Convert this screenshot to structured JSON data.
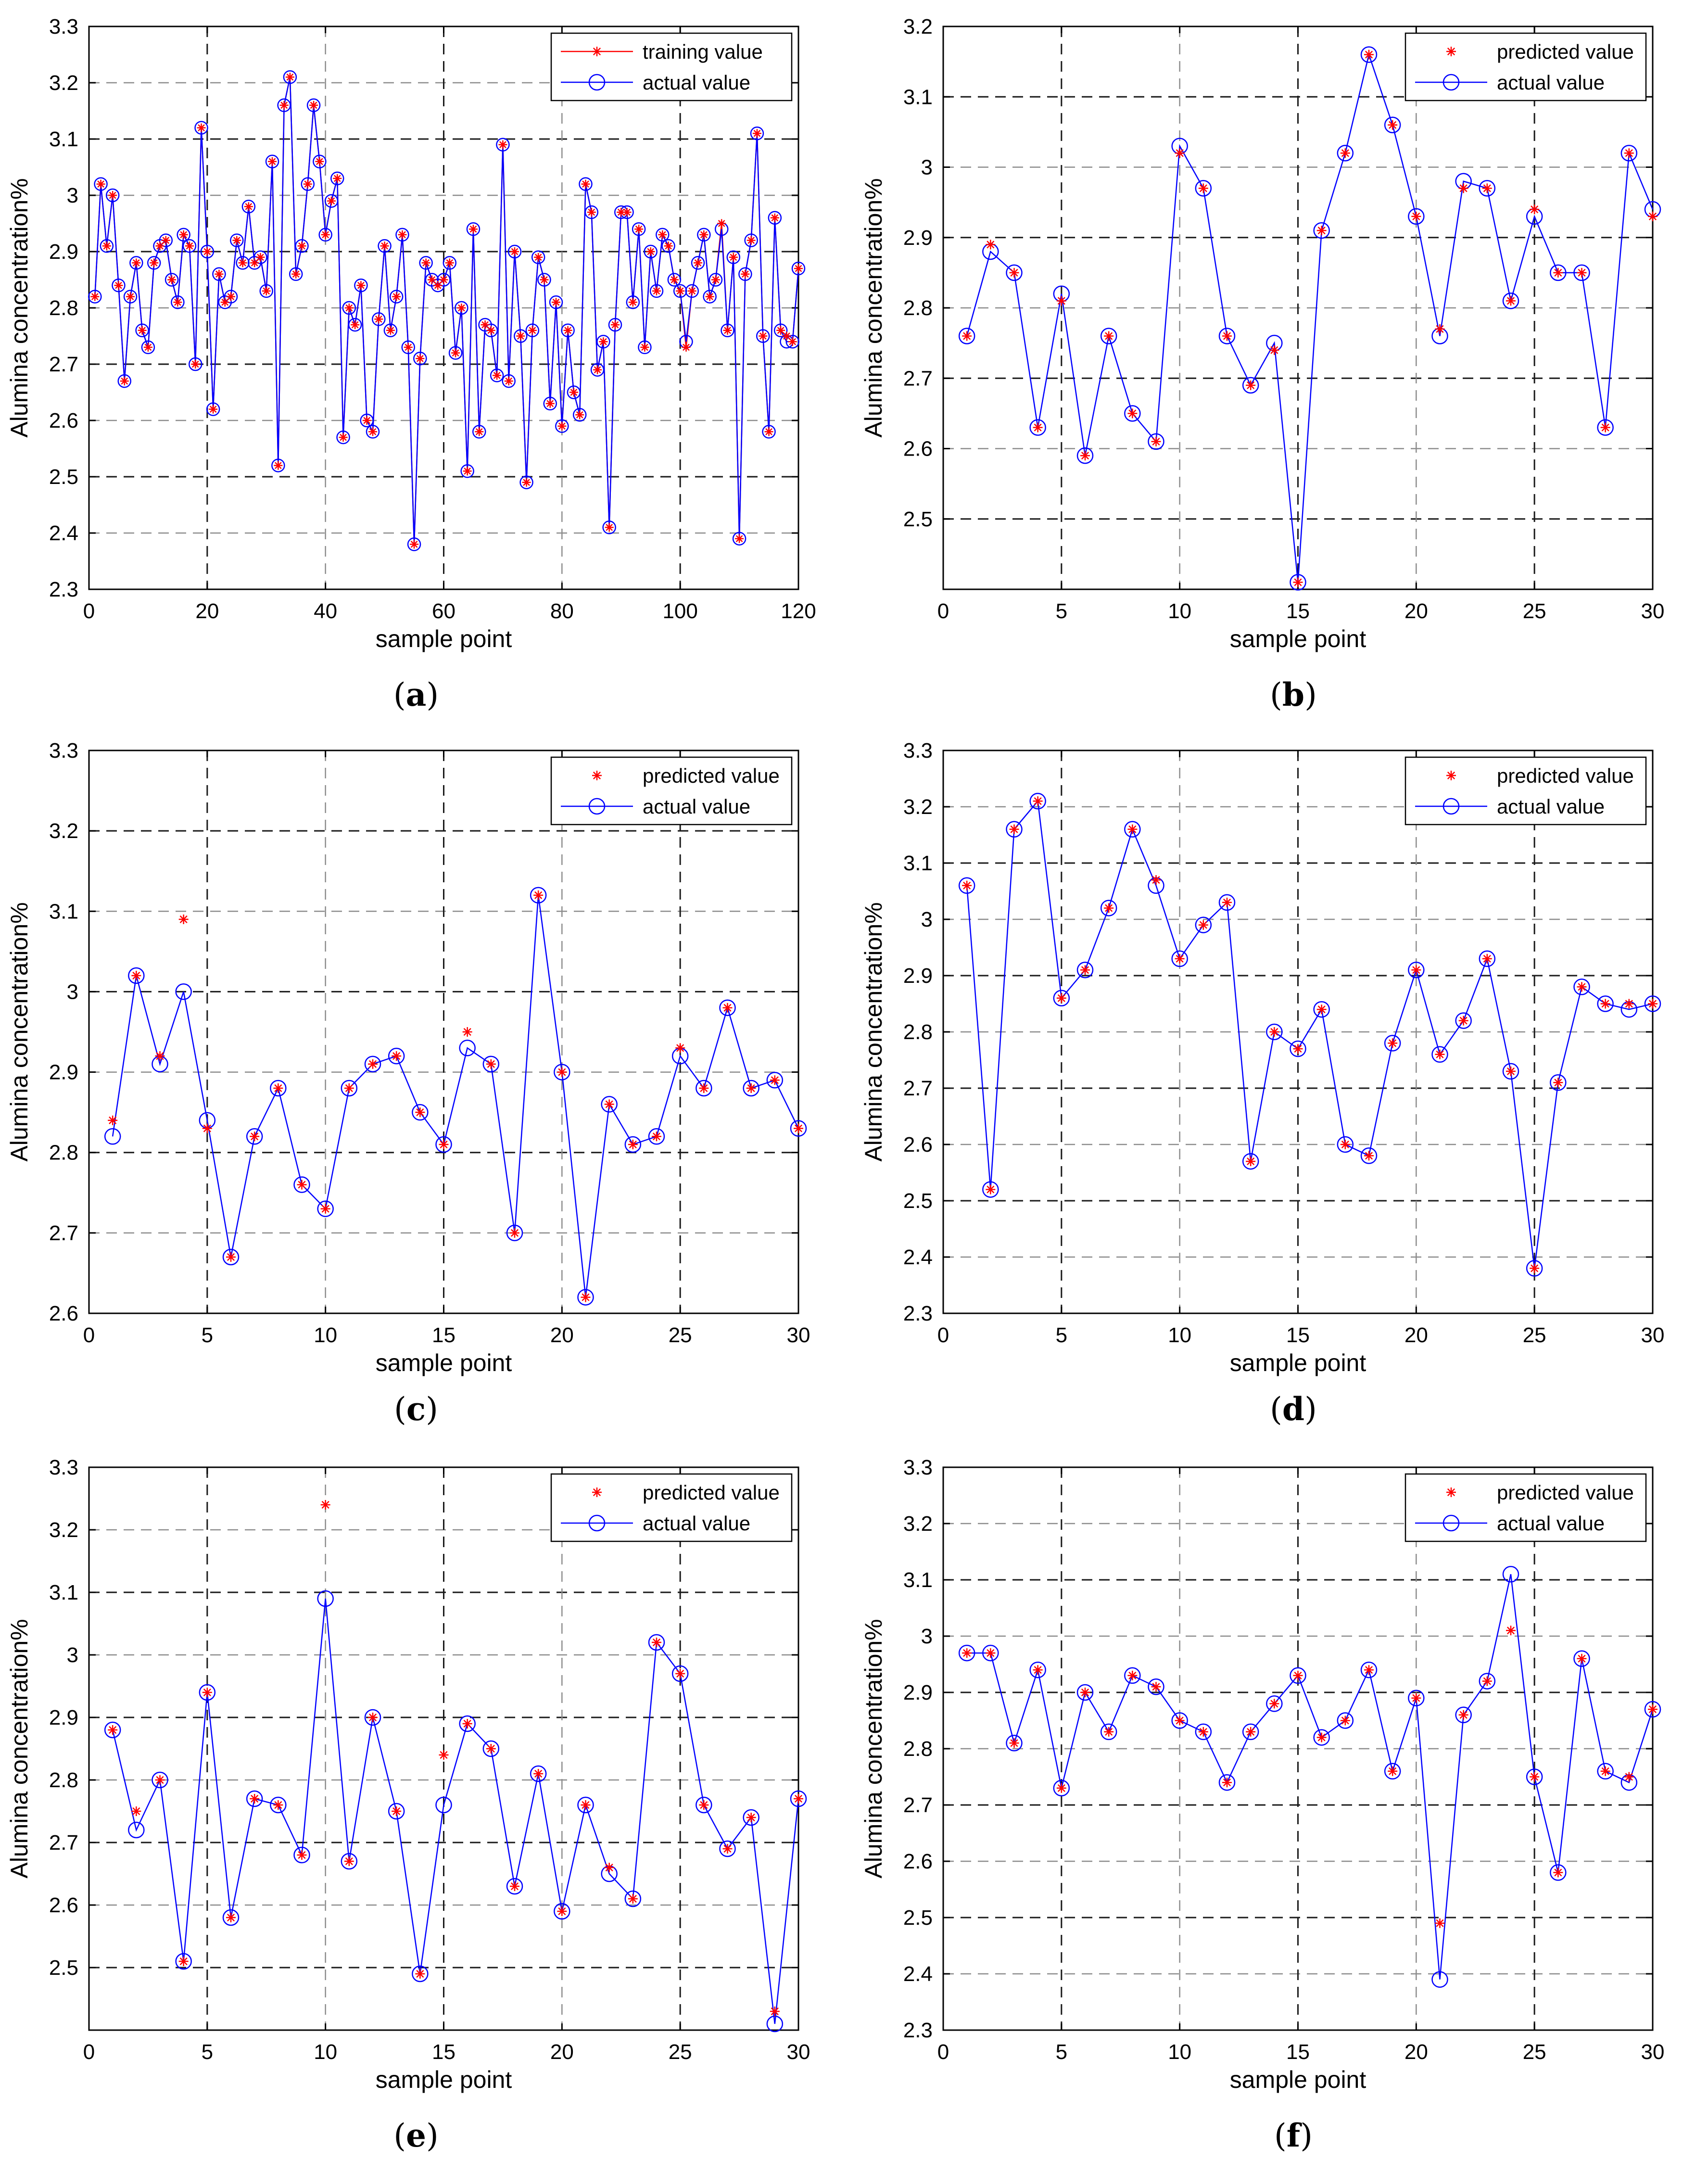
{
  "figure": {
    "xlabel": "sample point",
    "ylabel": "Alumina concentration%",
    "colors": {
      "predicted": "#ff0000",
      "actual": "#0000ff",
      "axis": "#000000",
      "grid_dark": "#1a1a1a",
      "grid_light": "#8c8c8c"
    }
  },
  "captions": [
    {
      "open": "(",
      "letter": "a",
      "close": ")"
    },
    {
      "open": "(",
      "letter": "b",
      "close": ")"
    },
    {
      "open": "(",
      "letter": "c",
      "close": ")"
    },
    {
      "open": "(",
      "letter": "d",
      "close": ")"
    },
    {
      "open": "(",
      "letter": "e",
      "close": ")"
    },
    {
      "open": "(",
      "letter": "f",
      "close": ")"
    }
  ],
  "chart_data": [
    {
      "type": "line",
      "panel": "a",
      "xlabel": "sample point",
      "ylabel": "Alumina concentration%",
      "xlim": [
        0,
        120
      ],
      "ylim": [
        2.3,
        3.3
      ],
      "xticks": [
        0,
        20,
        40,
        60,
        80,
        100,
        120
      ],
      "yticks": [
        2.3,
        2.4,
        2.5,
        2.6,
        2.7,
        2.8,
        2.9,
        3.0,
        3.1,
        3.2,
        3.3
      ],
      "ytick_labels": [
        "2.3",
        "2.4",
        "2.5",
        "2.6",
        "2.7",
        "2.8",
        "2.9",
        "3",
        "3.1",
        "3.2",
        "3.3"
      ],
      "legend_position": "top-right",
      "series": [
        {
          "name": "training value",
          "marker": "star",
          "color": "#ff0000",
          "line": true,
          "values": [
            2.82,
            3.02,
            2.91,
            3.0,
            2.84,
            2.67,
            2.82,
            2.88,
            2.76,
            2.73,
            2.88,
            2.91,
            2.92,
            2.85,
            2.81,
            2.93,
            2.91,
            2.7,
            3.12,
            2.9,
            2.62,
            2.86,
            2.81,
            2.82,
            2.92,
            2.88,
            2.98,
            2.88,
            2.89,
            2.83,
            3.06,
            2.52,
            3.16,
            3.21,
            2.86,
            2.91,
            3.02,
            3.16,
            3.06,
            2.93,
            2.99,
            3.03,
            2.57,
            2.8,
            2.77,
            2.84,
            2.6,
            2.58,
            2.78,
            2.91,
            2.76,
            2.82,
            2.93,
            2.73,
            2.38,
            2.71,
            2.88,
            2.85,
            2.84,
            2.85,
            2.88,
            2.72,
            2.8,
            2.51,
            2.94,
            2.58,
            2.77,
            2.76,
            2.68,
            3.09,
            2.67,
            2.9,
            2.75,
            2.49,
            2.76,
            2.89,
            2.85,
            2.63,
            2.81,
            2.59,
            2.76,
            2.65,
            2.61,
            3.02,
            2.97,
            2.69,
            2.74,
            2.41,
            2.77,
            2.97,
            2.97,
            2.81,
            2.94,
            2.73,
            2.9,
            2.83,
            2.93,
            2.91,
            2.85,
            2.83,
            2.73,
            2.83,
            2.88,
            2.93,
            2.82,
            2.85,
            2.95,
            2.76,
            2.89,
            2.39,
            2.86,
            2.92,
            3.11,
            2.75,
            2.58,
            2.96,
            2.76,
            2.75,
            2.74,
            2.87
          ]
        },
        {
          "name": "actual value",
          "marker": "circle",
          "color": "#0000ff",
          "line": true,
          "values": [
            2.82,
            3.02,
            2.91,
            3.0,
            2.84,
            2.67,
            2.82,
            2.88,
            2.76,
            2.73,
            2.88,
            2.91,
            2.92,
            2.85,
            2.81,
            2.93,
            2.91,
            2.7,
            3.12,
            2.9,
            2.62,
            2.86,
            2.81,
            2.82,
            2.92,
            2.88,
            2.98,
            2.88,
            2.89,
            2.83,
            3.06,
            2.52,
            3.16,
            3.21,
            2.86,
            2.91,
            3.02,
            3.16,
            3.06,
            2.93,
            2.99,
            3.03,
            2.57,
            2.8,
            2.77,
            2.84,
            2.6,
            2.58,
            2.78,
            2.91,
            2.76,
            2.82,
            2.93,
            2.73,
            2.38,
            2.71,
            2.88,
            2.85,
            2.84,
            2.85,
            2.88,
            2.72,
            2.8,
            2.51,
            2.94,
            2.58,
            2.77,
            2.76,
            2.68,
            3.09,
            2.67,
            2.9,
            2.75,
            2.49,
            2.76,
            2.89,
            2.85,
            2.63,
            2.81,
            2.59,
            2.76,
            2.65,
            2.61,
            3.02,
            2.97,
            2.69,
            2.74,
            2.41,
            2.77,
            2.97,
            2.97,
            2.81,
            2.94,
            2.73,
            2.9,
            2.83,
            2.93,
            2.91,
            2.85,
            2.83,
            2.74,
            2.83,
            2.88,
            2.93,
            2.82,
            2.85,
            2.94,
            2.76,
            2.89,
            2.39,
            2.86,
            2.92,
            3.11,
            2.75,
            2.58,
            2.96,
            2.76,
            2.74,
            2.74,
            2.87
          ]
        }
      ]
    },
    {
      "type": "line",
      "panel": "b",
      "xlabel": "sample point",
      "ylabel": "Alumina concentration%",
      "xlim": [
        0,
        30
      ],
      "ylim": [
        2.4,
        3.2
      ],
      "xticks": [
        0,
        5,
        10,
        15,
        20,
        25,
        30
      ],
      "yticks": [
        2.5,
        2.6,
        2.7,
        2.8,
        2.9,
        3.0,
        3.1,
        3.2
      ],
      "ytick_labels": [
        "2.5",
        "2.6",
        "2.7",
        "2.8",
        "2.9",
        "3",
        "3.1",
        "3.2"
      ],
      "legend_position": "top-right",
      "series": [
        {
          "name": "predicted value",
          "marker": "star",
          "color": "#ff0000",
          "line": false,
          "values": [
            2.76,
            2.89,
            2.85,
            2.63,
            2.81,
            2.59,
            2.76,
            2.65,
            2.61,
            3.02,
            2.97,
            2.76,
            2.69,
            2.74,
            2.41,
            2.91,
            3.02,
            3.16,
            3.06,
            2.93,
            2.77,
            2.97,
            2.97,
            2.81,
            2.94,
            2.85,
            2.85,
            2.63,
            3.02,
            2.93
          ]
        },
        {
          "name": "actual value",
          "marker": "circle",
          "color": "#0000ff",
          "line": true,
          "values": [
            2.76,
            2.88,
            2.85,
            2.63,
            2.82,
            2.59,
            2.76,
            2.65,
            2.61,
            3.03,
            2.97,
            2.76,
            2.69,
            2.75,
            2.41,
            2.91,
            3.02,
            3.16,
            3.06,
            2.93,
            2.76,
            2.98,
            2.97,
            2.81,
            2.93,
            2.85,
            2.85,
            2.63,
            3.02,
            2.94
          ]
        }
      ]
    },
    {
      "type": "line",
      "panel": "c",
      "xlabel": "sample point",
      "ylabel": "Alumina concentration%",
      "xlim": [
        0,
        30
      ],
      "ylim": [
        2.6,
        3.3
      ],
      "xticks": [
        0,
        5,
        10,
        15,
        20,
        25,
        30
      ],
      "yticks": [
        2.6,
        2.7,
        2.8,
        2.9,
        3.0,
        3.1,
        3.2,
        3.3
      ],
      "ytick_labels": [
        "2.6",
        "2.7",
        "2.8",
        "2.9",
        "3",
        "3.1",
        "3.2",
        "3.3"
      ],
      "legend_position": "top-right",
      "series": [
        {
          "name": "predicted value",
          "marker": "star",
          "color": "#ff0000",
          "line": false,
          "values": [
            2.84,
            3.02,
            2.92,
            3.09,
            2.83,
            2.67,
            2.82,
            2.88,
            2.76,
            2.73,
            2.88,
            2.91,
            2.92,
            2.85,
            2.81,
            2.95,
            2.91,
            2.7,
            3.12,
            2.9,
            2.62,
            2.86,
            2.81,
            2.82,
            2.93,
            2.88,
            2.98,
            2.88,
            2.89,
            2.83
          ]
        },
        {
          "name": "actual value",
          "marker": "circle",
          "color": "#0000ff",
          "line": true,
          "values": [
            2.82,
            3.02,
            2.91,
            3.0,
            2.84,
            2.67,
            2.82,
            2.88,
            2.76,
            2.73,
            2.88,
            2.91,
            2.92,
            2.85,
            2.81,
            2.93,
            2.91,
            2.7,
            3.12,
            2.9,
            2.62,
            2.86,
            2.81,
            2.82,
            2.92,
            2.88,
            2.98,
            2.88,
            2.89,
            2.83
          ]
        }
      ]
    },
    {
      "type": "line",
      "panel": "d",
      "xlabel": "sample point",
      "ylabel": "Alumina concentration%",
      "xlim": [
        0,
        30
      ],
      "ylim": [
        2.3,
        3.3
      ],
      "xticks": [
        0,
        5,
        10,
        15,
        20,
        25,
        30
      ],
      "yticks": [
        2.3,
        2.4,
        2.5,
        2.6,
        2.7,
        2.8,
        2.9,
        3.0,
        3.1,
        3.2,
        3.3
      ],
      "ytick_labels": [
        "2.3",
        "2.4",
        "2.5",
        "2.6",
        "2.7",
        "2.8",
        "2.9",
        "3",
        "3.1",
        "3.2",
        "3.3"
      ],
      "legend_position": "top-right",
      "series": [
        {
          "name": "predicted value",
          "marker": "star",
          "color": "#ff0000",
          "line": false,
          "values": [
            3.06,
            2.52,
            3.16,
            3.21,
            2.86,
            2.91,
            3.02,
            3.16,
            3.07,
            2.93,
            2.99,
            3.03,
            2.57,
            2.8,
            2.77,
            2.84,
            2.6,
            2.58,
            2.78,
            2.91,
            2.76,
            2.82,
            2.93,
            2.73,
            2.38,
            2.71,
            2.88,
            2.85,
            2.85,
            2.85
          ]
        },
        {
          "name": "actual value",
          "marker": "circle",
          "color": "#0000ff",
          "line": true,
          "values": [
            3.06,
            2.52,
            3.16,
            3.21,
            2.86,
            2.91,
            3.02,
            3.16,
            3.06,
            2.93,
            2.99,
            3.03,
            2.57,
            2.8,
            2.77,
            2.84,
            2.6,
            2.58,
            2.78,
            2.91,
            2.76,
            2.82,
            2.93,
            2.73,
            2.38,
            2.71,
            2.88,
            2.85,
            2.84,
            2.85
          ]
        }
      ]
    },
    {
      "type": "line",
      "panel": "e",
      "xlabel": "sample point",
      "ylabel": "Alumina concentration%",
      "xlim": [
        0,
        30
      ],
      "ylim": [
        2.4,
        3.3
      ],
      "xticks": [
        0,
        5,
        10,
        15,
        20,
        25,
        30
      ],
      "yticks": [
        2.5,
        2.6,
        2.7,
        2.8,
        2.9,
        3.0,
        3.1,
        3.2,
        3.3
      ],
      "ytick_labels": [
        "2.5",
        "2.6",
        "2.7",
        "2.8",
        "2.9",
        "3",
        "3.1",
        "3.2",
        "3.3"
      ],
      "legend_position": "top-right",
      "series": [
        {
          "name": "predicted value",
          "marker": "star",
          "color": "#ff0000",
          "line": false,
          "values": [
            2.88,
            2.75,
            2.8,
            2.51,
            2.94,
            2.58,
            2.77,
            2.76,
            2.68,
            3.24,
            2.67,
            2.9,
            2.75,
            2.49,
            2.84,
            2.89,
            2.85,
            2.63,
            2.81,
            2.59,
            2.76,
            2.66,
            2.61,
            3.02,
            2.97,
            2.76,
            2.69,
            2.74,
            2.43,
            2.77
          ]
        },
        {
          "name": "actual value",
          "marker": "circle",
          "color": "#0000ff",
          "line": true,
          "values": [
            2.88,
            2.72,
            2.8,
            2.51,
            2.94,
            2.58,
            2.77,
            2.76,
            2.68,
            3.09,
            2.67,
            2.9,
            2.75,
            2.49,
            2.76,
            2.89,
            2.85,
            2.63,
            2.81,
            2.59,
            2.76,
            2.65,
            2.61,
            3.02,
            2.97,
            2.76,
            2.69,
            2.74,
            2.41,
            2.77
          ]
        }
      ]
    },
    {
      "type": "line",
      "panel": "f",
      "xlabel": "sample point",
      "ylabel": "Alumina concentration%",
      "xlim": [
        0,
        30
      ],
      "ylim": [
        2.3,
        3.3
      ],
      "xticks": [
        0,
        5,
        10,
        15,
        20,
        25,
        30
      ],
      "yticks": [
        2.3,
        2.4,
        2.5,
        2.6,
        2.7,
        2.8,
        2.9,
        3.0,
        3.1,
        3.2,
        3.3
      ],
      "ytick_labels": [
        "2.3",
        "2.4",
        "2.5",
        "2.6",
        "2.7",
        "2.8",
        "2.9",
        "3",
        "3.1",
        "3.2",
        "3.3"
      ],
      "legend_position": "top-right",
      "series": [
        {
          "name": "predicted value",
          "marker": "star",
          "color": "#ff0000",
          "line": false,
          "values": [
            2.97,
            2.97,
            2.81,
            2.94,
            2.73,
            2.9,
            2.83,
            2.93,
            2.91,
            2.85,
            2.83,
            2.74,
            2.83,
            2.88,
            2.93,
            2.82,
            2.85,
            2.94,
            2.76,
            2.89,
            2.49,
            2.86,
            2.92,
            3.01,
            2.75,
            2.58,
            2.96,
            2.76,
            2.75,
            2.87
          ]
        },
        {
          "name": "actual value",
          "marker": "circle",
          "color": "#0000ff",
          "line": true,
          "values": [
            2.97,
            2.97,
            2.81,
            2.94,
            2.73,
            2.9,
            2.83,
            2.93,
            2.91,
            2.85,
            2.83,
            2.74,
            2.83,
            2.88,
            2.93,
            2.82,
            2.85,
            2.94,
            2.76,
            2.89,
            2.39,
            2.86,
            2.92,
            3.11,
            2.75,
            2.58,
            2.96,
            2.76,
            2.74,
            2.87
          ]
        }
      ]
    }
  ]
}
